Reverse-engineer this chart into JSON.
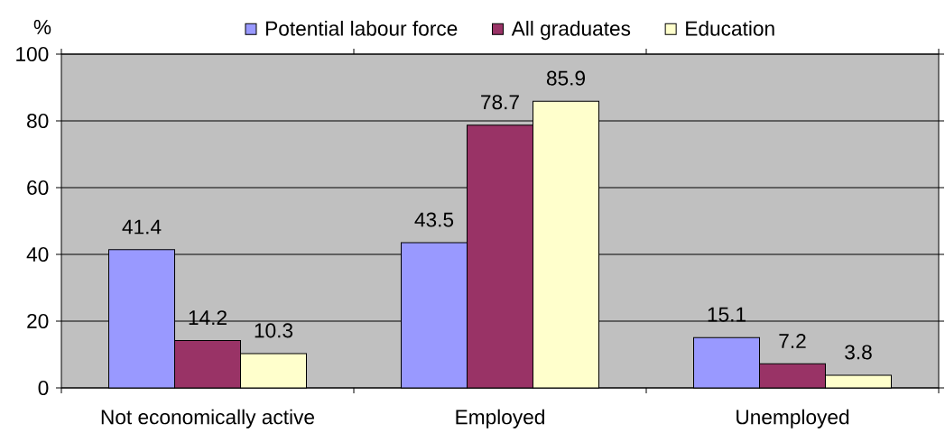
{
  "chart_data": {
    "type": "bar",
    "ylabel": "%",
    "categories": [
      "Not economically active",
      "Employed",
      "Unemployed"
    ],
    "series": [
      {
        "name": "Potential labour force",
        "color": "#9999ff",
        "values": [
          41.4,
          43.5,
          15.1
        ]
      },
      {
        "name": "All graduates",
        "color": "#993366",
        "values": [
          14.2,
          78.7,
          7.2
        ]
      },
      {
        "name": "Education",
        "color": "#ffffcc",
        "values": [
          10.3,
          85.9,
          3.8
        ]
      }
    ],
    "ylim": [
      0,
      100
    ],
    "yticks": [
      0,
      20,
      40,
      60,
      80,
      100
    ],
    "grid": "y",
    "legend": "top",
    "data_labels": true
  }
}
